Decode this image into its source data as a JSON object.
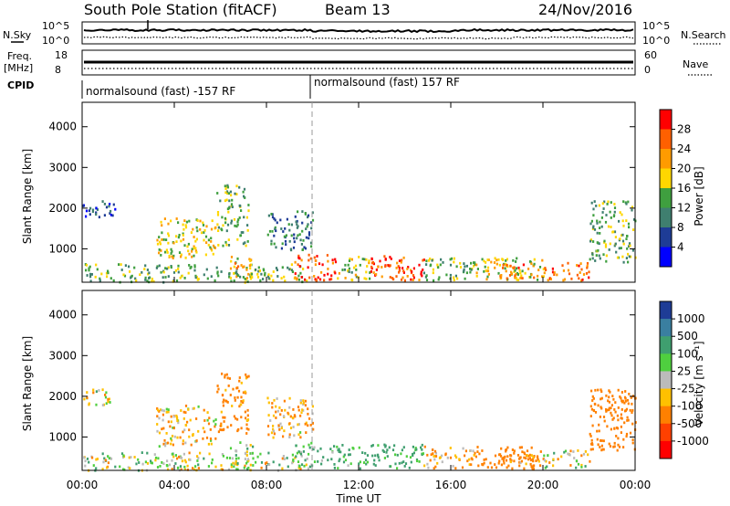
{
  "header": {
    "station": "South Pole Station (fitACF)",
    "beam": "Beam 13",
    "date": "24/Nov/2016"
  },
  "strip": {
    "nsky_label": "N.Sky",
    "nsky_ticks": [
      "10^5",
      "10^0"
    ],
    "nsearch_label": "N.Search",
    "freq_label_1": "Freq.",
    "freq_label_2": "[MHz]",
    "freq_ticks": [
      "18",
      "8"
    ],
    "nave_label": "Nave",
    "nave_ticks": [
      "60",
      "0"
    ],
    "cpid_label": "CPID",
    "cpid_segments": [
      "normalsound (fast) -157 RF",
      "normalsound (fast) 157 RF"
    ]
  },
  "axes": {
    "x_label": "Time UT",
    "x_ticks": [
      "00:00",
      "04:00",
      "08:00",
      "12:00",
      "16:00",
      "20:00",
      "00:00"
    ],
    "y_label": "Slant Range [km]",
    "y_ticks": [
      "1000",
      "2000",
      "3000",
      "4000"
    ]
  },
  "power_scale": {
    "label": "Power [dB]",
    "ticks": [
      "4",
      "8",
      "12",
      "16",
      "20",
      "24",
      "28"
    ],
    "colors": [
      "#0000ff",
      "#1e3c96",
      "#3f7f6f",
      "#3f9f3f",
      "#ffd700",
      "#ff9b00",
      "#ff6000",
      "#ff0000"
    ]
  },
  "velocity_scale": {
    "label": "Velocity [m s⁻¹]",
    "ticks": [
      "1000",
      "500",
      "100",
      "25",
      "-25",
      "-100",
      "-500",
      "-1000"
    ],
    "colors": [
      "#1e3c96",
      "#3a7fa0",
      "#3f9f6f",
      "#4fcf3f",
      "#bbbbbb",
      "#ffc000",
      "#ff8000",
      "#ff4000",
      "#ff0000"
    ]
  },
  "chart_data": [
    {
      "type": "heatmap",
      "title": "Power",
      "xlabel": "Time UT",
      "ylabel": "Slant Range [km]",
      "xlim": [
        0,
        24
      ],
      "ylim": [
        180,
        4600
      ],
      "colorbar_label": "Power [dB]",
      "colorbar_range": [
        0,
        32
      ],
      "regions": [
        {
          "t0": 0.0,
          "t1": 1.4,
          "r0": 1800,
          "r1": 2200,
          "v": 7
        },
        {
          "t0": 0.0,
          "t1": 9.8,
          "r0": 200,
          "r1": 650,
          "v": 14
        },
        {
          "t0": 3.2,
          "t1": 5.8,
          "r0": 800,
          "r1": 1800,
          "v": 18
        },
        {
          "t0": 5.8,
          "t1": 7.2,
          "r0": 1100,
          "r1": 2600,
          "v": 14
        },
        {
          "t0": 6.4,
          "t1": 7.4,
          "r0": 300,
          "r1": 900,
          "v": 20
        },
        {
          "t0": 8.0,
          "t1": 10.0,
          "r0": 1000,
          "r1": 2000,
          "v": 10
        },
        {
          "t0": 9.2,
          "t1": 11.0,
          "r0": 250,
          "r1": 900,
          "v": 26
        },
        {
          "t0": 11.0,
          "t1": 12.5,
          "r0": 250,
          "r1": 850,
          "v": 16
        },
        {
          "t0": 12.5,
          "t1": 14.8,
          "r0": 250,
          "r1": 850,
          "v": 27
        },
        {
          "t0": 14.8,
          "t1": 17.0,
          "r0": 250,
          "r1": 800,
          "v": 15
        },
        {
          "t0": 17.0,
          "t1": 20.0,
          "r0": 250,
          "r1": 800,
          "v": 18
        },
        {
          "t0": 18.0,
          "t1": 19.8,
          "r0": 300,
          "r1": 650,
          "v": 24
        },
        {
          "t0": 20.0,
          "t1": 22.0,
          "r0": 250,
          "r1": 700,
          "v": 25
        },
        {
          "t0": 22.0,
          "t1": 24.0,
          "r0": 700,
          "r1": 2200,
          "v": 14
        }
      ]
    },
    {
      "type": "heatmap",
      "title": "Velocity",
      "xlabel": "Time UT",
      "ylabel": "Slant Range [km]",
      "xlim": [
        0,
        24
      ],
      "ylim": [
        180,
        4600
      ],
      "colorbar_label": "Velocity [m s⁻¹]",
      "colorbar_range": [
        -1000,
        1000
      ],
      "regions": [
        {
          "t0": 0.0,
          "t1": 1.4,
          "r0": 1800,
          "r1": 2200,
          "v": 0
        },
        {
          "t0": 0.0,
          "t1": 9.8,
          "r0": 200,
          "r1": 650,
          "v": 10
        },
        {
          "t0": 3.2,
          "t1": 5.8,
          "r0": 800,
          "r1": 1800,
          "v": -80
        },
        {
          "t0": 5.8,
          "t1": 7.2,
          "r0": 1100,
          "r1": 2600,
          "v": -200
        },
        {
          "t0": 6.4,
          "t1": 7.4,
          "r0": 300,
          "r1": 900,
          "v": 60
        },
        {
          "t0": 8.0,
          "t1": 10.0,
          "r0": 1000,
          "r1": 2000,
          "v": -100
        },
        {
          "t0": 9.2,
          "t1": 11.0,
          "r0": 250,
          "r1": 900,
          "v": 120
        },
        {
          "t0": 11.0,
          "t1": 12.5,
          "r0": 250,
          "r1": 850,
          "v": 150
        },
        {
          "t0": 12.5,
          "t1": 14.8,
          "r0": 250,
          "r1": 850,
          "v": 150
        },
        {
          "t0": 14.8,
          "t1": 17.0,
          "r0": 250,
          "r1": 800,
          "v": -100
        },
        {
          "t0": 17.0,
          "t1": 20.0,
          "r0": 250,
          "r1": 800,
          "v": -300
        },
        {
          "t0": 18.0,
          "t1": 19.8,
          "r0": 300,
          "r1": 650,
          "v": -150
        },
        {
          "t0": 20.0,
          "t1": 22.0,
          "r0": 250,
          "r1": 700,
          "v": 0
        },
        {
          "t0": 22.0,
          "t1": 24.0,
          "r0": 700,
          "r1": 2200,
          "v": -250
        }
      ]
    }
  ]
}
